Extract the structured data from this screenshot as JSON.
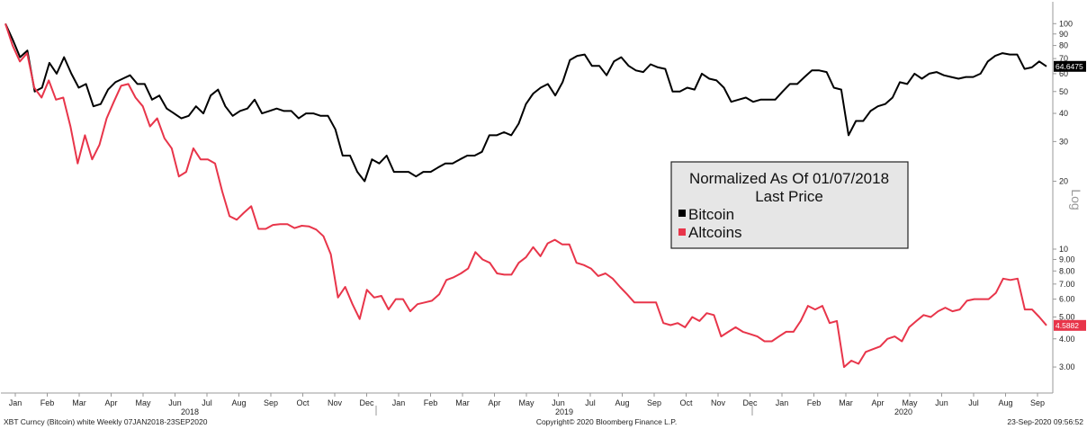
{
  "chart_data": {
    "type": "line",
    "scale": "log",
    "frequency": "Weekly",
    "ylim": [
      2.3,
      125
    ],
    "yticks": [
      {
        "v": 100,
        "label": "100"
      },
      {
        "v": 90,
        "label": "90"
      },
      {
        "v": 80,
        "label": "80"
      },
      {
        "v": 70,
        "label": "70"
      },
      {
        "v": 60,
        "label": "60"
      },
      {
        "v": 50,
        "label": "50"
      },
      {
        "v": 40,
        "label": "40"
      },
      {
        "v": 30,
        "label": "30"
      },
      {
        "v": 20,
        "label": "20"
      },
      {
        "v": 10,
        "label": "10"
      },
      {
        "v": 9,
        "label": "9.00"
      },
      {
        "v": 8,
        "label": "8.00"
      },
      {
        "v": 7,
        "label": "7.00"
      },
      {
        "v": 6,
        "label": "6.00"
      },
      {
        "v": 5,
        "label": "5.00"
      },
      {
        "v": 4,
        "label": "4.00"
      },
      {
        "v": 3,
        "label": "3.00"
      }
    ],
    "y_axis_label": "Log",
    "months": [
      "Jan",
      "Feb",
      "Mar",
      "Apr",
      "May",
      "Jun",
      "Jul",
      "Aug",
      "Sep",
      "Oct",
      "Nov",
      "Dec",
      "Jan",
      "Feb",
      "Mar",
      "Apr",
      "May",
      "Jun",
      "Jul",
      "Aug",
      "Sep",
      "Oct",
      "Nov",
      "Dec",
      "Jan",
      "Feb",
      "Mar",
      "Apr",
      "May",
      "Jun",
      "Jul",
      "Aug",
      "Sep"
    ],
    "years": [
      "2018",
      "2019",
      "2020"
    ],
    "legend": {
      "title": "Normalized As Of 01/07/2018",
      "subtitle": "Last Price",
      "placement": "center-right"
    },
    "series": [
      {
        "name": "Bitcoin",
        "color": "#000000",
        "last_value": "64.6475",
        "values": [
          100,
          85,
          71,
          76,
          50,
          52,
          67,
          60,
          71,
          60,
          52,
          54,
          43,
          44,
          51,
          55,
          57,
          59,
          54,
          54,
          46,
          48,
          42,
          40,
          38,
          39,
          43,
          40,
          48,
          51,
          43,
          39,
          41,
          42,
          46,
          40,
          41,
          42,
          41,
          41,
          38,
          40,
          40,
          39,
          39,
          34,
          26,
          26,
          22,
          20,
          25,
          24,
          26,
          22,
          22,
          22,
          21,
          22,
          22,
          23,
          24,
          24,
          25,
          26,
          26,
          27,
          32,
          32,
          33,
          32,
          36,
          44,
          49,
          52,
          54,
          48,
          55,
          69,
          72,
          73,
          65,
          65,
          59,
          68,
          71,
          65,
          62,
          61,
          66,
          64,
          63,
          50,
          50,
          52,
          51,
          60,
          57,
          56,
          52,
          45,
          46,
          47,
          45,
          46,
          46,
          46,
          50,
          54,
          54,
          58,
          62,
          62,
          61,
          52,
          51,
          32,
          37,
          37,
          41,
          43,
          44,
          47,
          55,
          54,
          60,
          57,
          60,
          61,
          59,
          58,
          57,
          58,
          58,
          60,
          68,
          72,
          74,
          73,
          73,
          63,
          64,
          68,
          64.6475
        ]
      },
      {
        "name": "Altcoins",
        "color": "#e8354a",
        "last_value": "4.5882",
        "values": [
          100,
          80,
          68,
          74,
          52,
          47,
          56,
          46,
          47,
          35,
          24,
          32,
          25,
          29,
          38,
          45,
          53,
          54,
          47,
          43,
          35,
          38,
          31,
          28,
          21,
          22,
          28,
          25,
          25,
          24,
          18,
          14,
          13.5,
          14.5,
          15.5,
          12.3,
          12.3,
          12.8,
          12.9,
          12.9,
          12.4,
          12.7,
          12.6,
          12.2,
          11.4,
          9.5,
          6.1,
          6.8,
          5.7,
          4.9,
          6.6,
          6.1,
          6.2,
          5.4,
          6.0,
          6.0,
          5.3,
          5.7,
          5.8,
          5.9,
          6.3,
          7.3,
          7.5,
          7.8,
          8.2,
          9.7,
          9.0,
          8.7,
          7.8,
          7.7,
          7.7,
          8.7,
          9.2,
          10.2,
          9.3,
          10.6,
          11.0,
          10.5,
          10.5,
          8.7,
          8.5,
          8.2,
          7.6,
          7.8,
          7.4,
          6.8,
          6.3,
          5.8,
          5.8,
          5.8,
          5.8,
          4.7,
          4.6,
          4.7,
          4.5,
          5.0,
          4.8,
          5.2,
          5.1,
          4.1,
          4.3,
          4.5,
          4.3,
          4.2,
          4.1,
          3.9,
          3.9,
          4.1,
          4.3,
          4.3,
          4.8,
          5.6,
          5.4,
          5.6,
          4.7,
          4.8,
          3.0,
          3.2,
          3.1,
          3.5,
          3.6,
          3.7,
          4.0,
          4.1,
          3.9,
          4.5,
          4.8,
          5.1,
          5.0,
          5.3,
          5.5,
          5.3,
          5.4,
          5.9,
          6.0,
          6.0,
          6.0,
          6.4,
          7.4,
          7.3,
          7.4,
          5.4,
          5.4,
          5.0,
          4.5882
        ]
      }
    ]
  },
  "footer": {
    "left": "XBT Curncy (Bitcoin) white  Weekly 07JAN2018-23SEP2020",
    "center": "Copyright© 2020 Bloomberg Finance L.P.",
    "right": "23-Sep-2020 09:56:52"
  }
}
